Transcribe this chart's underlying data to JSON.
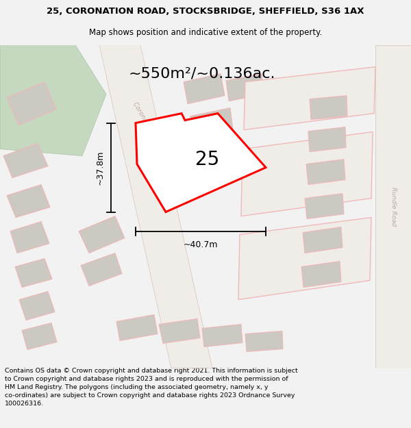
{
  "title": "25, CORONATION ROAD, STOCKSBRIDGE, SHEFFIELD, S36 1AX",
  "subtitle": "Map shows position and indicative extent of the property.",
  "footer": "Contains OS data © Crown copyright and database right 2021. This information is subject\nto Crown copyright and database rights 2023 and is reproduced with the permission of\nHM Land Registry. The polygons (including the associated geometry, namely x, y\nco-ordinates) are subject to Crown copyright and database rights 2023 Ordnance Survey\n100026316.",
  "area_label": "~550m²/~0.136ac.",
  "width_label": "~40.7m",
  "height_label": "~37.8m",
  "plot_number": "25",
  "bg_color": "#f2f2f2",
  "map_bg": "#ede9e4",
  "plot_color": "#ff0000",
  "plot_fill": "#ffffff",
  "road_color": "#f0b8b8",
  "green_color": "#c5d9c0",
  "building_color": "#ccc8c2",
  "title_fontsize": 9.5,
  "subtitle_fontsize": 8.5,
  "footer_fontsize": 6.8
}
